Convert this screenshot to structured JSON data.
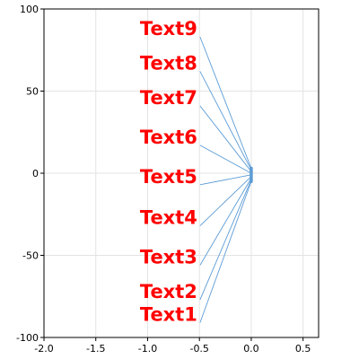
{
  "chart_data": {
    "type": "scatter",
    "xlim": [
      -2.0,
      0.65
    ],
    "ylim": [
      -100,
      100
    ],
    "x_ticks": [
      -2.0,
      -1.5,
      -1.0,
      -0.5,
      0.0,
      0.5
    ],
    "y_ticks": [
      -100,
      -50,
      0,
      50,
      100
    ],
    "x_tick_labels": [
      "-2.0",
      "-1.5",
      "-1.0",
      "-0.5",
      "0.0",
      "0.5"
    ],
    "y_tick_labels": [
      "-100",
      "-50",
      "0",
      "50",
      "100"
    ],
    "grid": true,
    "series": [
      {
        "color": "#5b9bd5",
        "x": [
          0.0,
          0.0,
          0.0,
          0.0,
          0.0,
          0.0,
          0.0,
          0.0,
          0.0
        ],
        "y": [
          -5,
          -4,
          -3,
          -2,
          -1,
          0,
          1,
          2,
          3
        ]
      }
    ],
    "annotations": [
      {
        "text": "Text1",
        "x": -0.52,
        "y": -91,
        "point": [
          0.0,
          -5
        ]
      },
      {
        "text": "Text2",
        "x": -0.52,
        "y": -77,
        "point": [
          0.0,
          -4
        ]
      },
      {
        "text": "Text3",
        "x": -0.52,
        "y": -56,
        "point": [
          0.0,
          -3
        ]
      },
      {
        "text": "Text4",
        "x": -0.52,
        "y": -32,
        "point": [
          0.0,
          -2
        ]
      },
      {
        "text": "Text5",
        "x": -0.52,
        "y": -7,
        "point": [
          0.0,
          -1
        ]
      },
      {
        "text": "Text6",
        "x": -0.52,
        "y": 17,
        "point": [
          0.0,
          0
        ]
      },
      {
        "text": "Text7",
        "x": -0.52,
        "y": 41,
        "point": [
          0.0,
          1
        ]
      },
      {
        "text": "Text8",
        "x": -0.52,
        "y": 62,
        "point": [
          0.0,
          2
        ]
      },
      {
        "text": "Text9",
        "x": -0.52,
        "y": 83,
        "point": [
          0.0,
          3
        ]
      }
    ],
    "text_color": "#ff0000",
    "arrow_color": "#5b9bd5",
    "grid_color": "#e3e3e3"
  }
}
